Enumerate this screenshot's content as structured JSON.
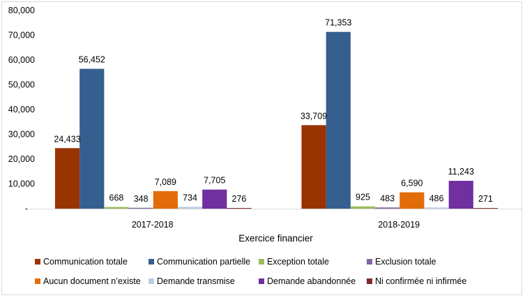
{
  "chart_data": {
    "type": "bar",
    "title": "",
    "xlabel": "Exercice financier",
    "ylabel": "",
    "ylim": [
      0,
      80000
    ],
    "yticks": [
      0,
      10000,
      20000,
      30000,
      40000,
      50000,
      60000,
      70000,
      80000
    ],
    "ytick_labels": [
      "-",
      "10,000",
      "20,000",
      "30,000",
      "40,000",
      "50,000",
      "60,000",
      "70,000",
      "80,000"
    ],
    "grid": false,
    "legend_position": "bottom",
    "categories": [
      "2017-2018",
      "2018-2019"
    ],
    "series": [
      {
        "name": "Communication totale",
        "color": "#993300",
        "values": [
          24433,
          33709
        ],
        "labels": [
          "24,433",
          "33,709"
        ]
      },
      {
        "name": "Communication partielle",
        "color": "#355f8f",
        "values": [
          56452,
          71353
        ],
        "labels": [
          "56,452",
          "71,353"
        ]
      },
      {
        "name": "Exception totale",
        "color": "#9bbb59",
        "values": [
          668,
          925
        ],
        "labels": [
          "668",
          "925"
        ]
      },
      {
        "name": "Exclusion totale",
        "color": "#8064a2",
        "values": [
          348,
          483
        ],
        "labels": [
          "348",
          "483"
        ]
      },
      {
        "name": "Aucun document n’existe",
        "color": "#e36c0a",
        "values": [
          7089,
          6590
        ],
        "labels": [
          "7,089",
          "6,590"
        ]
      },
      {
        "name": "Demande transmise",
        "color": "#b9cde5",
        "values": [
          734,
          486
        ],
        "labels": [
          "734",
          "486"
        ]
      },
      {
        "name": "Demande abandonnée",
        "color": "#7030a0",
        "values": [
          7705,
          11243
        ],
        "labels": [
          "7,705",
          "11,243"
        ]
      },
      {
        "name": "Ni confirmée ni infirmée",
        "color": "#7f2b2b",
        "values": [
          276,
          271
        ],
        "labels": [
          "276",
          "271"
        ]
      }
    ]
  }
}
